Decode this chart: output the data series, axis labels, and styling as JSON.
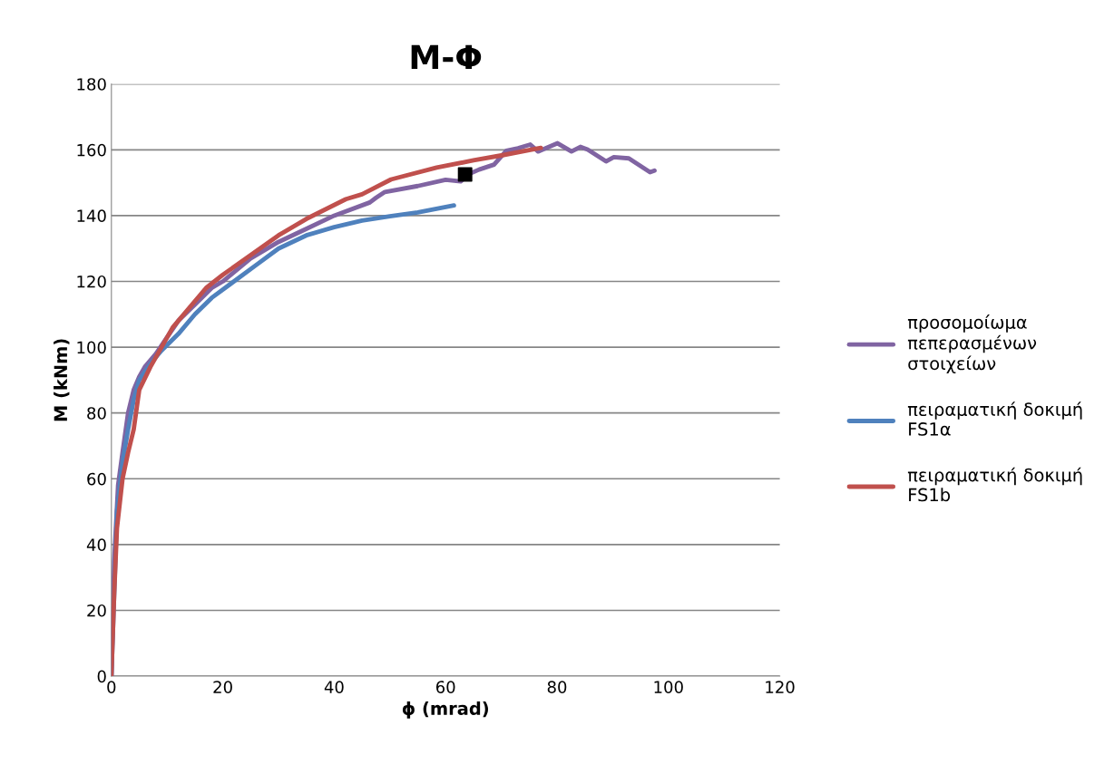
{
  "chart_data": {
    "type": "line",
    "title": "M-Φ",
    "xlabel": "ϕ (mrad)",
    "ylabel": "M (kNm)",
    "xlim": [
      0,
      120
    ],
    "xticks": [
      0,
      20,
      40,
      60,
      80,
      100,
      120
    ],
    "ylim": [
      0,
      180
    ],
    "yticks": [
      0,
      20,
      40,
      60,
      80,
      100,
      120,
      140,
      160,
      180
    ],
    "grid": "y",
    "legend": "right",
    "marker": "none",
    "line_style": "solid",
    "series": [
      {
        "name": "προσομοίωμα πεπερασμένων στοιχείων",
        "color": "#8064a2",
        "x": [
          0,
          0.5,
          1.2,
          2,
          3,
          4,
          5,
          6,
          8,
          10,
          12,
          15,
          18,
          20,
          25,
          30,
          35,
          40,
          46.4,
          47.5,
          49.1,
          55,
          60,
          62.7,
          64,
          66,
          68.7,
          70.9,
          73,
          75.2,
          76.6,
          78,
          80.1,
          82.6,
          84.2,
          85.5,
          88.8,
          90.2,
          92.9,
          96.7,
          97.5
        ],
        "values": [
          0,
          35,
          58,
          68,
          80,
          87,
          91,
          94,
          98,
          103,
          108,
          113,
          118,
          120,
          127,
          132,
          136,
          140,
          144,
          145.4,
          147.2,
          149,
          150.9,
          150.4,
          152.5,
          154,
          155.5,
          159.7,
          160.5,
          161.6,
          159.5,
          160.5,
          162,
          159.5,
          160.9,
          160.1,
          156.5,
          157.8,
          157.4,
          153.2,
          153.7
        ]
      },
      {
        "name": "πειραματική δοκιμή FS1α",
        "color": "#4f81bd",
        "x": [
          0,
          1,
          2,
          3,
          4,
          5,
          7,
          9,
          12,
          15,
          18,
          22,
          26,
          30,
          35,
          40,
          45,
          50,
          55,
          61.5
        ],
        "values": [
          0,
          50,
          65,
          75,
          84,
          90,
          95,
          99,
          104,
          110,
          115,
          120,
          125,
          130,
          134,
          136.5,
          138.5,
          139.8,
          141,
          143.1
        ]
      },
      {
        "name": "πειραματική δοκιμή FS1b",
        "color": "#c0504d",
        "x": [
          0,
          0.5,
          1,
          2,
          3,
          4,
          5,
          7,
          9,
          11,
          14,
          17,
          20,
          25,
          30,
          35,
          42.1,
          45,
          50.2,
          58.4,
          65,
          70,
          77.1
        ],
        "values": [
          0,
          25,
          45,
          60,
          68,
          75,
          87,
          94,
          100,
          106,
          112,
          118,
          122,
          128,
          134,
          139,
          145,
          146.5,
          151,
          154.6,
          156.8,
          158.3,
          160.6
        ]
      },
      {
        "type": "scatter",
        "marker": "square",
        "color": "#000000",
        "x": [
          63.5
        ],
        "values": [
          152.5
        ]
      }
    ]
  }
}
